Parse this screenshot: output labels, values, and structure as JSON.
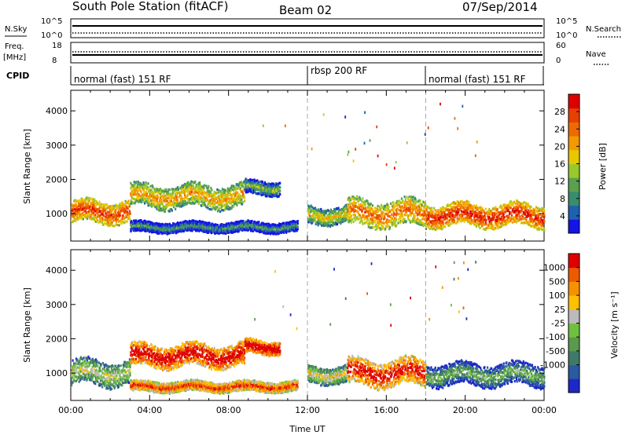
{
  "header": {
    "station": "South Pole Station (fitACF)",
    "beam": "Beam 02",
    "date": "07/Sep/2014"
  },
  "top_panels": {
    "nsky_label": "N.Sky",
    "nsky_ticks": [
      "10^5",
      "10^0"
    ],
    "nsearch_label": "N.Search",
    "nsearch_ticks": [
      "10^5",
      "10^0"
    ],
    "freq_label": "Freq.",
    "freq_unit": "[MHz]",
    "freq_ticks": [
      "18",
      "8"
    ],
    "nave_label": "Nave",
    "nave_ticks": [
      "60",
      "0"
    ],
    "cpid_label": "CPID",
    "cpid_segments": [
      {
        "label": "normal (fast) 151 RF",
        "start_h": 0,
        "end_h": 12
      },
      {
        "label": "rbsp 200 RF",
        "start_h": 12,
        "end_h": 18
      },
      {
        "label": "normal (fast) 151 RF",
        "start_h": 18,
        "end_h": 24
      }
    ]
  },
  "chart_data": [
    {
      "type": "heatmap",
      "quantity": "power",
      "ylabel": "Slant Range [km]",
      "yticks": [
        1000,
        2000,
        3000,
        4000
      ],
      "ylim": [
        200,
        4600
      ],
      "xlim_hours": [
        0,
        24
      ],
      "colorbar": {
        "label": "Power [dB]",
        "ticks": [
          "4",
          "8",
          "12",
          "16",
          "20",
          "24",
          "28"
        ],
        "range": [
          0,
          32
        ],
        "colors": [
          "#1414e6",
          "#2060b0",
          "#3a8c6e",
          "#5aa050",
          "#9ac82a",
          "#e8c800",
          "#f39a00",
          "#ee6a00",
          "#e84000",
          "#e00000"
        ]
      },
      "bands": [
        {
          "h0": 0.0,
          "h1": 3.0,
          "r_center": 1050,
          "r_halfwidth": 320,
          "level": 0.65
        },
        {
          "h0": 3.0,
          "h1": 8.8,
          "r_center": 1500,
          "r_halfwidth": 330,
          "level": 0.45
        },
        {
          "h0": 8.8,
          "h1": 10.6,
          "r_center": 1750,
          "r_halfwidth": 200,
          "level": 0.2
        },
        {
          "h0": 3.0,
          "h1": 11.5,
          "r_center": 600,
          "r_halfwidth": 150,
          "level": 0.1
        },
        {
          "h0": 12.0,
          "h1": 14.0,
          "r_center": 950,
          "r_halfwidth": 250,
          "level": 0.35
        },
        {
          "h0": 14.0,
          "h1": 18.0,
          "r_center": 1000,
          "r_halfwidth": 380,
          "level": 0.55
        },
        {
          "h0": 18.0,
          "h1": 24.0,
          "r_center": 950,
          "r_halfwidth": 320,
          "level": 0.7
        }
      ]
    },
    {
      "type": "heatmap",
      "quantity": "velocity",
      "ylabel": "Slant Range [km]",
      "yticks": [
        1000,
        2000,
        3000,
        4000
      ],
      "ylim": [
        200,
        4600
      ],
      "xlim_hours": [
        0,
        24
      ],
      "xticks": [
        "00:00",
        "04:00",
        "08:00",
        "12:00",
        "16:00",
        "20:00",
        "00:00"
      ],
      "xlabel": "Time UT",
      "colorbar": {
        "label": "Velocity [m s⁻¹]",
        "ticks": [
          "1000",
          "500",
          "100",
          "25",
          "-25",
          "-100",
          "-500",
          "-1000"
        ],
        "colors": [
          "#1e28c8",
          "#2a5aa0",
          "#3e7a6a",
          "#5a9a4e",
          "#70c040",
          "#bbbbbb",
          "#ffc000",
          "#f59200",
          "#ee5a00",
          "#e00000"
        ]
      },
      "bands": [
        {
          "h0": 0.0,
          "h1": 3.0,
          "r_center": 1000,
          "r_halfwidth": 360,
          "level": 0.35
        },
        {
          "h0": 3.0,
          "h1": 8.8,
          "r_center": 1500,
          "r_halfwidth": 330,
          "level": 0.82
        },
        {
          "h0": 8.8,
          "h1": 10.6,
          "r_center": 1750,
          "r_halfwidth": 200,
          "level": 0.85
        },
        {
          "h0": 3.0,
          "h1": 11.5,
          "r_center": 600,
          "r_halfwidth": 150,
          "level": 0.7
        },
        {
          "h0": 12.0,
          "h1": 14.0,
          "r_center": 950,
          "r_halfwidth": 250,
          "level": 0.4
        },
        {
          "h0": 14.0,
          "h1": 18.0,
          "r_center": 1000,
          "r_halfwidth": 380,
          "level": 0.78
        },
        {
          "h0": 18.0,
          "h1": 24.0,
          "r_center": 950,
          "r_halfwidth": 320,
          "level": 0.2
        }
      ]
    }
  ]
}
